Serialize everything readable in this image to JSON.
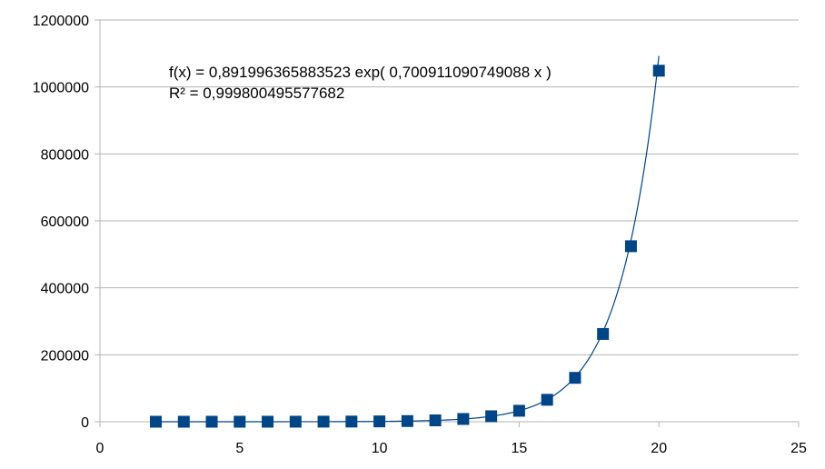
{
  "chart_data": {
    "type": "scatter",
    "x": [
      2,
      3,
      4,
      5,
      6,
      7,
      8,
      9,
      10,
      11,
      12,
      13,
      14,
      15,
      16,
      17,
      18,
      19,
      20
    ],
    "series": [
      {
        "values": [
          4,
          8,
          16,
          32,
          64,
          128,
          256,
          512,
          1024,
          2048,
          4096,
          8192,
          16384,
          32768,
          65536,
          131072,
          262144,
          524288,
          1048576
        ],
        "color": "#004586",
        "marker": "square"
      }
    ],
    "trendline": {
      "kind": "exponential",
      "a": 0.891996365883523,
      "b": 0.700911090749088,
      "color": "#004586",
      "x_range": [
        2,
        20
      ]
    },
    "annotations": {
      "equation": "f(x) = 0,891996365883523 exp( 0,700911090749088 x )",
      "r_squared": "R² = 0,999800495577682"
    },
    "xlim": [
      0,
      25
    ],
    "ylim": [
      0,
      1200000
    ],
    "x_ticks": [
      "0",
      "5",
      "10",
      "15",
      "20",
      "25"
    ],
    "y_ticks": [
      "0",
      "200000",
      "400000",
      "600000",
      "800000",
      "1000000",
      "1200000"
    ],
    "grid": "horizontal",
    "legend": "none",
    "title": "",
    "xlabel": "",
    "ylabel": ""
  }
}
